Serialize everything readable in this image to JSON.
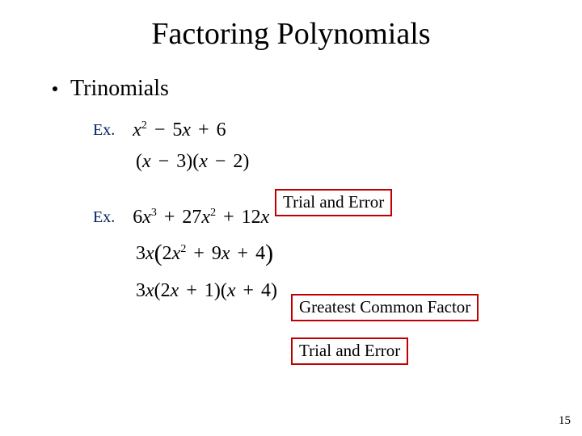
{
  "title": "Factoring Polynomials",
  "bullet": "Trinomials",
  "ex_label": "Ex.",
  "ex1": {
    "problem": "x² − 5x + 6",
    "answer": "(x − 3)(x − 2)"
  },
  "ex2": {
    "problem": "6x³ + 27x² + 12x",
    "step1": "3x(2x² + 9x + 4)",
    "step2": "3x(2x + 1)(x + 4)"
  },
  "callouts": {
    "trial_error": "Trial and Error",
    "gcf": "Greatest Common Factor"
  },
  "page_number": "15",
  "colors": {
    "title": "#000000",
    "ex_label": "#002060",
    "callout_border": "#c00000",
    "background": "#ffffff"
  },
  "fonts": {
    "title_size": 38,
    "bullet_size": 28,
    "math_size": 24,
    "ex_label_size": 20,
    "callout_size": 21
  }
}
